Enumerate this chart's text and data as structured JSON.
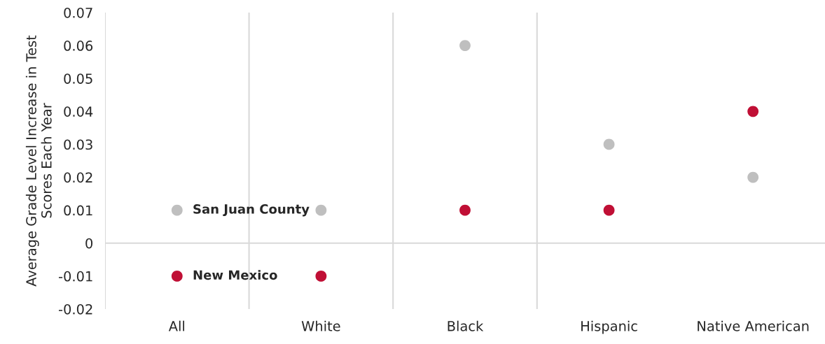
{
  "chart_data": {
    "type": "scatter",
    "ylabel": "Average Grade Level Increase in Test\nScores Each Year",
    "categories": [
      "All",
      "White",
      "Black",
      "Hispanic",
      "Native American"
    ],
    "series": [
      {
        "name": "San Juan County",
        "color": "#bfbfbf",
        "values": [
          0.01,
          0.01,
          0.06,
          0.03,
          0.02
        ]
      },
      {
        "name": "New Mexico",
        "color": "#c00f35",
        "values": [
          -0.01,
          -0.01,
          0.01,
          0.01,
          0.04
        ]
      }
    ],
    "ylim": [
      -0.02,
      0.07
    ],
    "yticks": [
      -0.02,
      -0.01,
      0,
      0.01,
      0.02,
      0.03,
      0.04,
      0.05,
      0.06,
      0.07
    ],
    "ref_lines": [
      {
        "axis": "y",
        "value": 0,
        "color": "#d9d9d9"
      }
    ],
    "grid": "x",
    "legend": false,
    "marker": "circle"
  }
}
